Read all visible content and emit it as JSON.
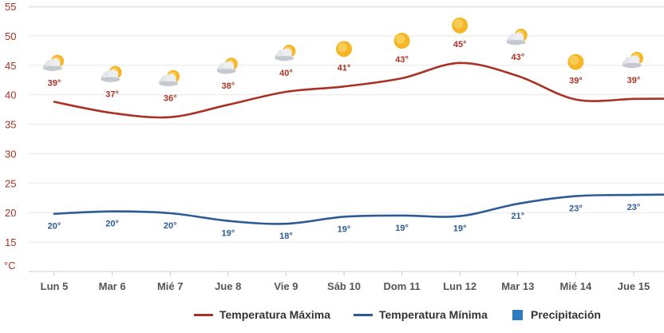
{
  "chart_data": {
    "type": "line",
    "yunit": "°C",
    "ylim": [
      10,
      55
    ],
    "yticks": [
      15,
      20,
      25,
      30,
      35,
      40,
      45,
      50,
      55
    ],
    "grid": true,
    "legend_position": "bottom",
    "categories": [
      "Lun 5",
      "Mar 6",
      "Mié 7",
      "Jue 8",
      "Vie 9",
      "Sáb 10",
      "Dom 11",
      "Lun 12",
      "Mar 13",
      "Mié 14",
      "Jue 15"
    ],
    "series": [
      {
        "name": "Temperatura Máxima",
        "color": "#a93226",
        "values": [
          38.8,
          36.9,
          36.2,
          38.3,
          40.5,
          41.4,
          42.8,
          45.4,
          43.2,
          39.2,
          39.3
        ],
        "labels": [
          "39°",
          "37°",
          "36°",
          "38°",
          "40°",
          "41°",
          "43°",
          "45°",
          "43°",
          "39°",
          "39°"
        ],
        "icons": [
          "cloudy-sun-icon",
          "cloudy-sun-icon",
          "cloudy-sun-icon",
          "cloudy-sun-icon",
          "cloudy-sun-icon",
          "sun-icon",
          "sun-icon",
          "sun-icon",
          "cloudy-sun-icon",
          "sun-icon",
          "cloudy-sun-icon"
        ]
      },
      {
        "name": "Temperatura Mínima",
        "color": "#2d5b96",
        "values": [
          19.8,
          20.2,
          19.9,
          18.6,
          18.1,
          19.3,
          19.5,
          19.4,
          21.5,
          22.8,
          23.0
        ],
        "labels": [
          "20°",
          "20°",
          "20°",
          "19°",
          "18°",
          "19°",
          "19°",
          "19°",
          "21°",
          "23°",
          "23°"
        ]
      }
    ],
    "extra_legend": {
      "name": "Precipitación",
      "color": "#2e7bbf"
    }
  }
}
